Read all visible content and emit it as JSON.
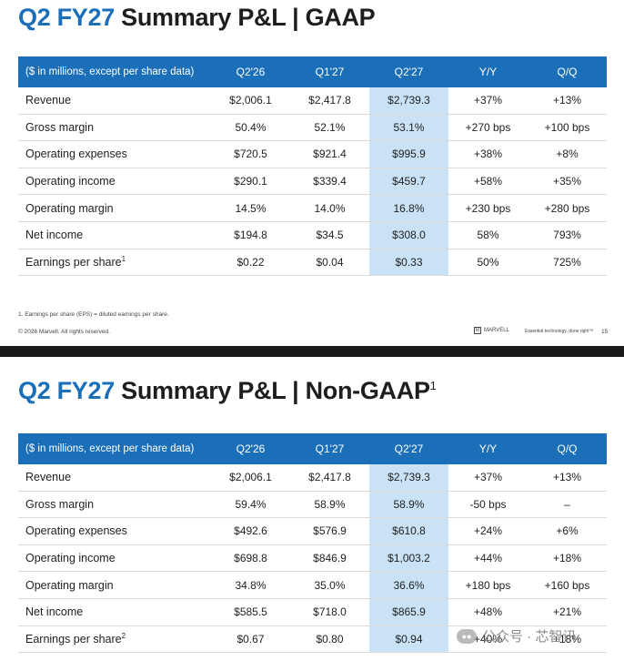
{
  "gaap": {
    "title_q": "Q2 FY27",
    "title_rest": "Summary P&L | GAAP",
    "header": [
      "($ in millions, except per share data)",
      "Q2'26",
      "Q1'27",
      "Q2'27",
      "Y/Y",
      "Q/Q"
    ],
    "rows": [
      {
        "label": "Revenue",
        "sup": "",
        "vals": [
          "$2,006.1",
          "$2,417.8",
          "$2,739.3",
          "+37%",
          "+13%"
        ]
      },
      {
        "label": "Gross margin",
        "sup": "",
        "vals": [
          "50.4%",
          "52.1%",
          "53.1%",
          "+270 bps",
          "+100 bps"
        ]
      },
      {
        "label": "Operating expenses",
        "sup": "",
        "vals": [
          "$720.5",
          "$921.4",
          "$995.9",
          "+38%",
          "+8%"
        ]
      },
      {
        "label": "Operating income",
        "sup": "",
        "vals": [
          "$290.1",
          "$339.4",
          "$459.7",
          "+58%",
          "+35%"
        ]
      },
      {
        "label": "Operating margin",
        "sup": "",
        "vals": [
          "14.5%",
          "14.0%",
          "16.8%",
          "+230 bps",
          "+280 bps"
        ]
      },
      {
        "label": "Net income",
        "sup": "",
        "vals": [
          "$194.8",
          "$34.5",
          "$308.0",
          "58%",
          "793%"
        ]
      },
      {
        "label": "Earnings per share",
        "sup": "1",
        "vals": [
          "$0.22",
          "$0.04",
          "$0.33",
          "50%",
          "725%"
        ]
      }
    ],
    "footnote": "1. Earnings per share (EPS) = diluted earnings per share.",
    "copyright": "© 2026 Marvell. All rights reserved.",
    "brand": "MARVELL",
    "tagline": "Essential technology, done right™",
    "page": "15"
  },
  "nongaap": {
    "title_q": "Q2 FY27",
    "title_rest": "Summary P&L | Non-GAAP",
    "title_sup": "1",
    "header": [
      "($ in millions, except per share data)",
      "Q2'26",
      "Q1'27",
      "Q2'27",
      "Y/Y",
      "Q/Q"
    ],
    "rows": [
      {
        "label": "Revenue",
        "sup": "",
        "vals": [
          "$2,006.1",
          "$2,417.8",
          "$2,739.3",
          "+37%",
          "+13%"
        ]
      },
      {
        "label": "Gross margin",
        "sup": "",
        "vals": [
          "59.4%",
          "58.9%",
          "58.9%",
          "-50 bps",
          "–"
        ]
      },
      {
        "label": "Operating expenses",
        "sup": "",
        "vals": [
          "$492.6",
          "$576.9",
          "$610.8",
          "+24%",
          "+6%"
        ]
      },
      {
        "label": "Operating income",
        "sup": "",
        "vals": [
          "$698.8",
          "$846.9",
          "$1,003.2",
          "+44%",
          "+18%"
        ]
      },
      {
        "label": "Operating margin",
        "sup": "",
        "vals": [
          "34.8%",
          "35.0%",
          "36.6%",
          "+180 bps",
          "+160 bps"
        ]
      },
      {
        "label": "Net income",
        "sup": "",
        "vals": [
          "$585.5",
          "$718.0",
          "$865.9",
          "+48%",
          "+21%"
        ]
      },
      {
        "label": "Earnings per share",
        "sup": "2",
        "vals": [
          "$0.67",
          "$0.80",
          "$0.94",
          "+40%",
          "+18%"
        ]
      }
    ]
  },
  "watermark": "公众号 · 芯智讯",
  "colors": {
    "accent": "#1a6fb8",
    "highlight": "#c9e2f6"
  }
}
